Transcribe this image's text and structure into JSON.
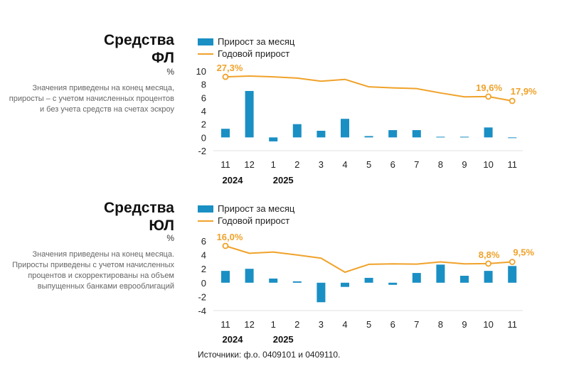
{
  "legend": {
    "bar_label": "Прирост за месяц",
    "line_label": "Годовой прирост",
    "bar_color": "#1a8fc4",
    "line_color": "#f0a22a"
  },
  "panels": [
    {
      "title_line1": "Средства",
      "title_line2": "ФЛ",
      "unit": "%",
      "note": "Значения приведены на конец месяца, приросты – с учетом начисленных процентов и без учета средств на счетах эскроу"
    },
    {
      "title_line1": "Средства",
      "title_line2": "ЮЛ",
      "unit": "%",
      "note": "Значения приведены на конец месяца. Приросты приведены с учетом начисленных процентов и скорректированы на объем выпущенных банками еврооблигаций"
    }
  ],
  "chart_data": [
    {
      "type": "bar+line",
      "title": "Средства ФЛ",
      "categories": [
        "11",
        "12",
        "1",
        "2",
        "3",
        "4",
        "5",
        "6",
        "7",
        "8",
        "9",
        "10",
        "11"
      ],
      "year_labels": [
        {
          "label": "2024",
          "at": "11"
        },
        {
          "label": "2025",
          "at": "1"
        }
      ],
      "series": [
        {
          "name": "Прирост за месяц",
          "kind": "bar",
          "values": [
            1.3,
            7.0,
            -0.6,
            2.0,
            1.0,
            2.8,
            0.2,
            1.1,
            1.1,
            0.1,
            0.1,
            1.5,
            -0.1
          ]
        },
        {
          "name": "Годовой прирост",
          "kind": "line",
          "values": [
            27.3,
            27.6,
            27.3,
            26.8,
            25.6,
            26.3,
            23.4,
            23.0,
            22.7,
            21.0,
            19.5,
            19.6,
            17.9
          ]
        }
      ],
      "annotations": [
        {
          "index": 0,
          "text": "27,3%"
        },
        {
          "index": 11,
          "text": "19,6%"
        },
        {
          "index": 12,
          "text": "17,9%"
        }
      ],
      "yticks": [
        "10",
        "8",
        "6",
        "4",
        "2",
        "0",
        "-2"
      ],
      "ylim": [
        -2,
        10
      ]
    },
    {
      "type": "bar+line",
      "title": "Средства ЮЛ",
      "categories": [
        "11",
        "12",
        "1",
        "2",
        "3",
        "4",
        "5",
        "6",
        "7",
        "8",
        "9",
        "10",
        "11"
      ],
      "year_labels": [
        {
          "label": "2024",
          "at": "11"
        },
        {
          "label": "2025",
          "at": "1"
        }
      ],
      "series": [
        {
          "name": "Прирост за месяц",
          "kind": "bar",
          "values": [
            1.7,
            2.0,
            0.6,
            0.2,
            -2.8,
            -0.6,
            0.7,
            -0.3,
            1.4,
            2.6,
            1.0,
            1.7,
            2.4
          ]
        },
        {
          "name": "Годовой прирост",
          "kind": "line",
          "values": [
            16.0,
            13.0,
            13.5,
            12.3,
            11.0,
            5.3,
            8.5,
            8.7,
            8.6,
            9.5,
            8.7,
            8.8,
            9.5
          ]
        }
      ],
      "annotations": [
        {
          "index": 0,
          "text": "16,0%"
        },
        {
          "index": 11,
          "text": "8,8%"
        },
        {
          "index": 12,
          "text": "9,5%"
        }
      ],
      "yticks": [
        "6",
        "4",
        "2",
        "0",
        "-2",
        "-4"
      ],
      "ylim": [
        -4,
        6
      ]
    }
  ],
  "source": "Источники: ф.о. 0409101 и 0409110."
}
